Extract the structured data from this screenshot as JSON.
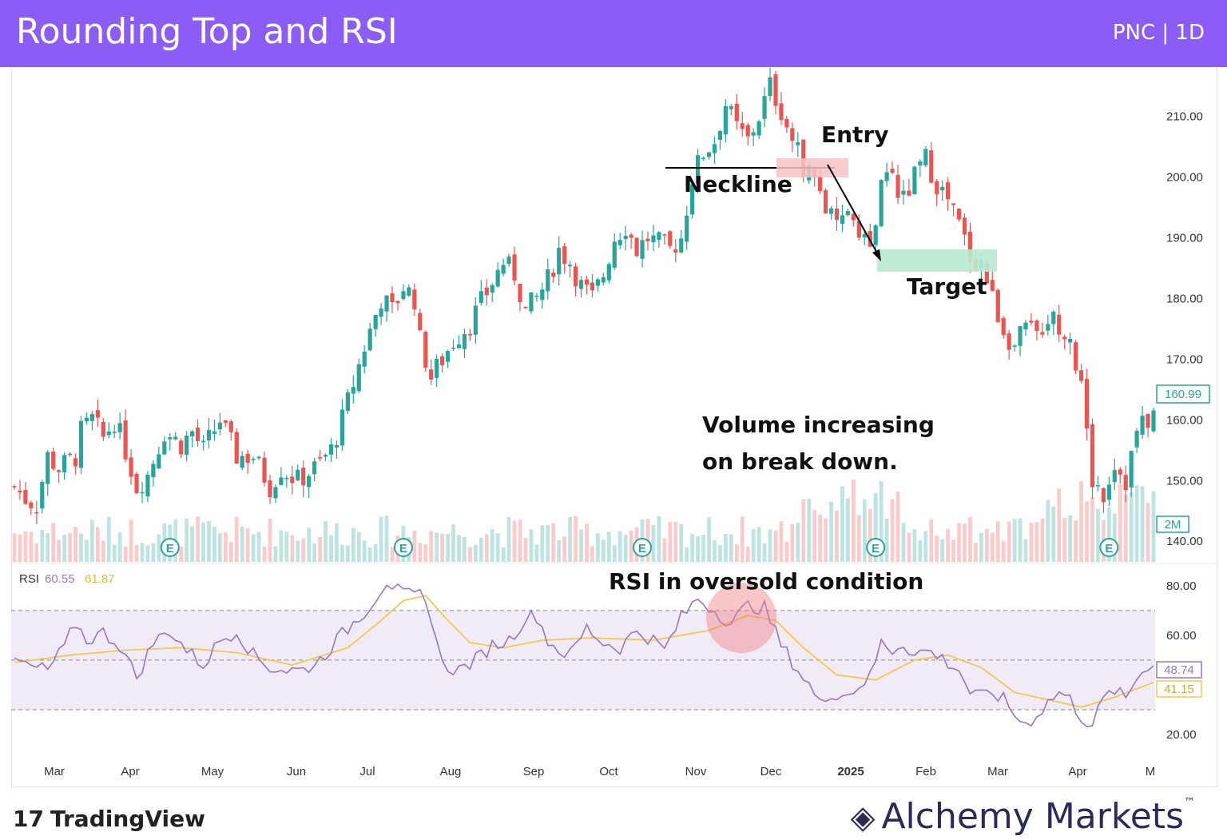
{
  "header": {
    "title": "Rounding Top and RSI",
    "symbol": "PNC | 1D"
  },
  "colors": {
    "header_bg": "#8b5cf6",
    "up": "#26a69a",
    "down": "#ef5350",
    "rsi": "#9575cd",
    "rsi_ma": "#f2c94c"
  },
  "chart_data": [
    {
      "type": "candlestick",
      "title": "",
      "ylim": [
        137,
        216
      ],
      "yticks": [
        "210.00",
        "200.00",
        "190.00",
        "180.00",
        "170.00",
        "160.00",
        "150.00",
        "140.00"
      ],
      "x_labels": [
        "Mar",
        "Apr",
        "May",
        "Jun",
        "Jul",
        "Aug",
        "Sep",
        "Oct",
        "Nov",
        "Dec",
        "2025",
        "Feb",
        "Mar",
        "Apr",
        "M"
      ],
      "last_price": "160.99",
      "volume_label": "2M",
      "earnings_marker": "E",
      "close_path": [
        [
          0,
          149
        ],
        [
          2,
          147
        ],
        [
          4,
          146
        ],
        [
          6,
          154
        ],
        [
          8,
          152
        ],
        [
          11,
          154
        ],
        [
          12,
          158
        ],
        [
          14,
          160
        ],
        [
          16,
          157
        ],
        [
          18,
          160
        ],
        [
          20,
          155
        ],
        [
          22,
          149
        ],
        [
          24,
          151
        ],
        [
          27,
          158
        ],
        [
          30,
          156
        ],
        [
          32,
          158
        ],
        [
          34,
          155
        ],
        [
          37,
          160
        ],
        [
          40,
          154
        ],
        [
          43,
          154
        ],
        [
          46,
          149
        ],
        [
          48,
          152
        ],
        [
          51,
          150
        ],
        [
          54,
          152
        ],
        [
          57,
          155
        ],
        [
          59,
          160
        ],
        [
          61,
          166
        ],
        [
          63,
          172
        ],
        [
          66,
          180
        ],
        [
          68,
          178
        ],
        [
          70,
          182
        ],
        [
          72,
          180
        ],
        [
          73,
          173
        ],
        [
          75,
          167
        ],
        [
          77,
          170
        ],
        [
          79,
          173
        ],
        [
          82,
          176
        ],
        [
          85,
          181
        ],
        [
          88,
          186
        ],
        [
          90,
          184
        ],
        [
          92,
          178
        ],
        [
          94,
          180
        ],
        [
          96,
          183
        ],
        [
          98,
          188
        ],
        [
          100,
          186
        ],
        [
          102,
          182
        ],
        [
          104,
          180
        ],
        [
          106,
          184
        ],
        [
          108,
          190
        ],
        [
          110,
          192
        ],
        [
          112,
          188
        ],
        [
          114,
          190
        ],
        [
          116,
          189
        ],
        [
          118,
          188
        ],
        [
          120,
          190
        ],
        [
          122,
          200
        ],
        [
          124,
          204
        ],
        [
          126,
          206
        ],
        [
          128,
          212
        ],
        [
          130,
          208
        ],
        [
          132,
          206
        ],
        [
          134,
          210
        ],
        [
          136,
          215
        ],
        [
          138,
          211
        ],
        [
          140,
          206
        ],
        [
          142,
          202
        ],
        [
          144,
          200
        ],
        [
          146,
          195
        ],
        [
          148,
          191
        ],
        [
          150,
          195
        ],
        [
          152,
          192
        ],
        [
          154,
          188
        ],
        [
          156,
          198
        ],
        [
          158,
          201
        ],
        [
          160,
          196
        ],
        [
          162,
          200
        ],
        [
          164,
          203
        ],
        [
          166,
          199
        ],
        [
          168,
          196
        ],
        [
          170,
          192
        ],
        [
          172,
          187
        ],
        [
          174,
          186
        ],
        [
          176,
          180
        ],
        [
          178,
          175
        ],
        [
          180,
          172
        ],
        [
          182,
          175
        ],
        [
          184,
          174
        ],
        [
          186,
          177
        ],
        [
          188,
          176
        ],
        [
          190,
          174
        ],
        [
          192,
          165
        ],
        [
          194,
          150
        ],
        [
          196,
          148
        ],
        [
          198,
          153
        ],
        [
          200,
          150
        ],
        [
          202,
          158
        ],
        [
          204,
          160
        ],
        [
          205,
          161
        ]
      ],
      "rsi": {
        "label": "RSI",
        "value": "60.55",
        "ma_value": "61.87",
        "yticks": [
          "80.00",
          "60.00",
          "20.00"
        ],
        "last_rsi": "48.74",
        "last_ma": "41.15",
        "levels": [
          70,
          50,
          30
        ],
        "series": [
          [
            0,
            50
          ],
          [
            3,
            47
          ],
          [
            6,
            46
          ],
          [
            9,
            55
          ],
          [
            11,
            65
          ],
          [
            13,
            58
          ],
          [
            16,
            61
          ],
          [
            19,
            56
          ],
          [
            22,
            43
          ],
          [
            25,
            57
          ],
          [
            28,
            62
          ],
          [
            31,
            54
          ],
          [
            34,
            48
          ],
          [
            37,
            58
          ],
          [
            40,
            62
          ],
          [
            43,
            52
          ],
          [
            46,
            47
          ],
          [
            49,
            46
          ],
          [
            52,
            46
          ],
          [
            55,
            50
          ],
          [
            58,
            58
          ],
          [
            61,
            65
          ],
          [
            64,
            72
          ],
          [
            67,
            82
          ],
          [
            70,
            76
          ],
          [
            73,
            76
          ],
          [
            75,
            68
          ],
          [
            77,
            48
          ],
          [
            80,
            46
          ],
          [
            83,
            50
          ],
          [
            86,
            56
          ],
          [
            89,
            58
          ],
          [
            92,
            67
          ],
          [
            94,
            68
          ],
          [
            96,
            58
          ],
          [
            98,
            54
          ],
          [
            100,
            52
          ],
          [
            103,
            63
          ],
          [
            106,
            57
          ],
          [
            109,
            55
          ],
          [
            112,
            62
          ],
          [
            115,
            58
          ],
          [
            117,
            54
          ],
          [
            120,
            67
          ],
          [
            123,
            75
          ],
          [
            126,
            70
          ],
          [
            129,
            65
          ],
          [
            132,
            72
          ],
          [
            135,
            71
          ],
          [
            138,
            56
          ],
          [
            141,
            46
          ],
          [
            143,
            40
          ],
          [
            145,
            32
          ],
          [
            147,
            37
          ],
          [
            150,
            36
          ],
          [
            152,
            40
          ],
          [
            154,
            43
          ],
          [
            156,
            57
          ],
          [
            158,
            54
          ],
          [
            160,
            57
          ],
          [
            162,
            52
          ],
          [
            164,
            54
          ],
          [
            166,
            52
          ],
          [
            168,
            49
          ],
          [
            170,
            46
          ],
          [
            172,
            37
          ],
          [
            174,
            35
          ],
          [
            176,
            37
          ],
          [
            178,
            34
          ],
          [
            180,
            28
          ],
          [
            182,
            24
          ],
          [
            184,
            28
          ],
          [
            186,
            33
          ],
          [
            188,
            37
          ],
          [
            190,
            34
          ],
          [
            192,
            27
          ],
          [
            194,
            24
          ],
          [
            196,
            34
          ],
          [
            198,
            38
          ],
          [
            200,
            34
          ],
          [
            202,
            43
          ],
          [
            204,
            48
          ],
          [
            205,
            49
          ]
        ],
        "ma": [
          [
            0,
            49
          ],
          [
            10,
            52
          ],
          [
            20,
            54
          ],
          [
            30,
            55
          ],
          [
            40,
            53
          ],
          [
            50,
            48
          ],
          [
            60,
            55
          ],
          [
            66,
            66
          ],
          [
            70,
            74
          ],
          [
            74,
            76
          ],
          [
            78,
            66
          ],
          [
            82,
            57
          ],
          [
            88,
            55
          ],
          [
            95,
            58
          ],
          [
            104,
            59
          ],
          [
            115,
            58
          ],
          [
            125,
            62
          ],
          [
            132,
            68
          ],
          [
            137,
            66
          ],
          [
            142,
            55
          ],
          [
            148,
            44
          ],
          [
            155,
            42
          ],
          [
            162,
            50
          ],
          [
            168,
            52
          ],
          [
            174,
            47
          ],
          [
            180,
            37
          ],
          [
            186,
            34
          ],
          [
            192,
            31
          ],
          [
            198,
            35
          ],
          [
            205,
            41
          ]
        ]
      }
    }
  ],
  "annotations": {
    "entry": "Entry",
    "neckline": "Neckline",
    "target": "Target",
    "volume_note_1": "Volume increasing",
    "volume_note_2": "on break down.",
    "rsi_note": "RSI in oversold condition"
  },
  "footer": {
    "tradingview": "TradingView",
    "brand": "Alchemy Markets",
    "tm": "™"
  }
}
